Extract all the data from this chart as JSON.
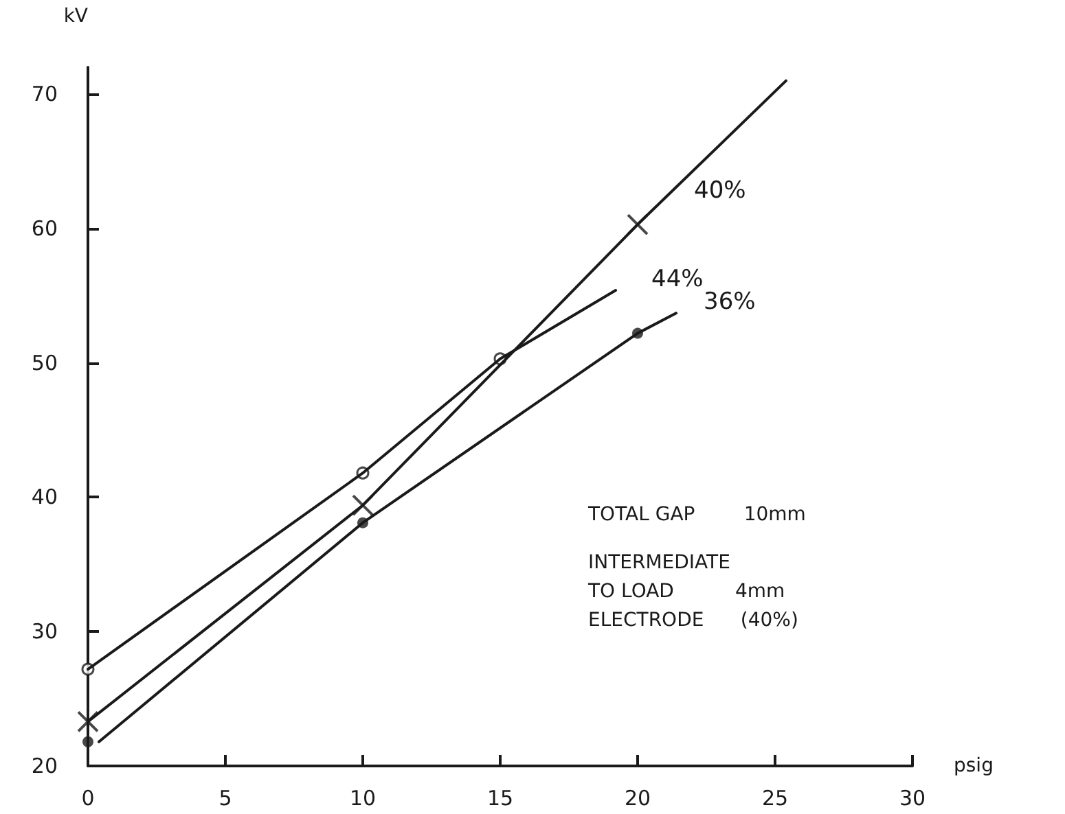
{
  "chart_data": {
    "type": "line",
    "xlabel": "psig",
    "ylabel": "kV",
    "xlim": [
      0,
      30
    ],
    "xticks": [
      0,
      5,
      10,
      15,
      20,
      25,
      30
    ],
    "ylim": [
      20,
      72
    ],
    "yticks": [
      20,
      30,
      40,
      50,
      60,
      70
    ],
    "grid": false,
    "legend": false,
    "line_style": "solid",
    "series": [
      {
        "name": "40%",
        "color": "#1a1a1a",
        "marker": "none",
        "x": [
          0,
          10,
          20,
          25.4
        ],
        "values": [
          23.3,
          39.4,
          60.3,
          71.0
        ]
      },
      {
        "name": "44%",
        "color": "#1a1a1a",
        "marker": "none",
        "x": [
          0,
          10,
          15,
          19.2
        ],
        "values": [
          27.2,
          41.8,
          50.3,
          55.4
        ]
      },
      {
        "name": "36%",
        "color": "#1a1a1a",
        "marker": "none",
        "x": [
          0.4,
          10,
          20,
          21.4
        ],
        "values": [
          21.8,
          38.1,
          52.2,
          53.7
        ]
      },
      {
        "type": "scatter",
        "color": "#1a1a1a",
        "marker": "cross",
        "x": [
          0,
          10,
          20
        ],
        "values": [
          23.3,
          39.4,
          60.3
        ]
      },
      {
        "type": "scatter",
        "color": "#1a1a1a",
        "marker": "circle",
        "x": [
          0,
          10,
          15
        ],
        "values": [
          27.2,
          41.8,
          50.3
        ]
      },
      {
        "type": "scatter",
        "color": "#1a1a1a",
        "marker": "circle",
        "x": [
          0,
          10,
          20
        ],
        "values": [
          21.8,
          38.1,
          52.2
        ]
      }
    ],
    "annotations": [
      "TOTAL GAP        10mm",
      "INTERMEDIATE",
      "TO LOAD          4mm",
      "ELECTRODE      (40%)"
    ]
  }
}
